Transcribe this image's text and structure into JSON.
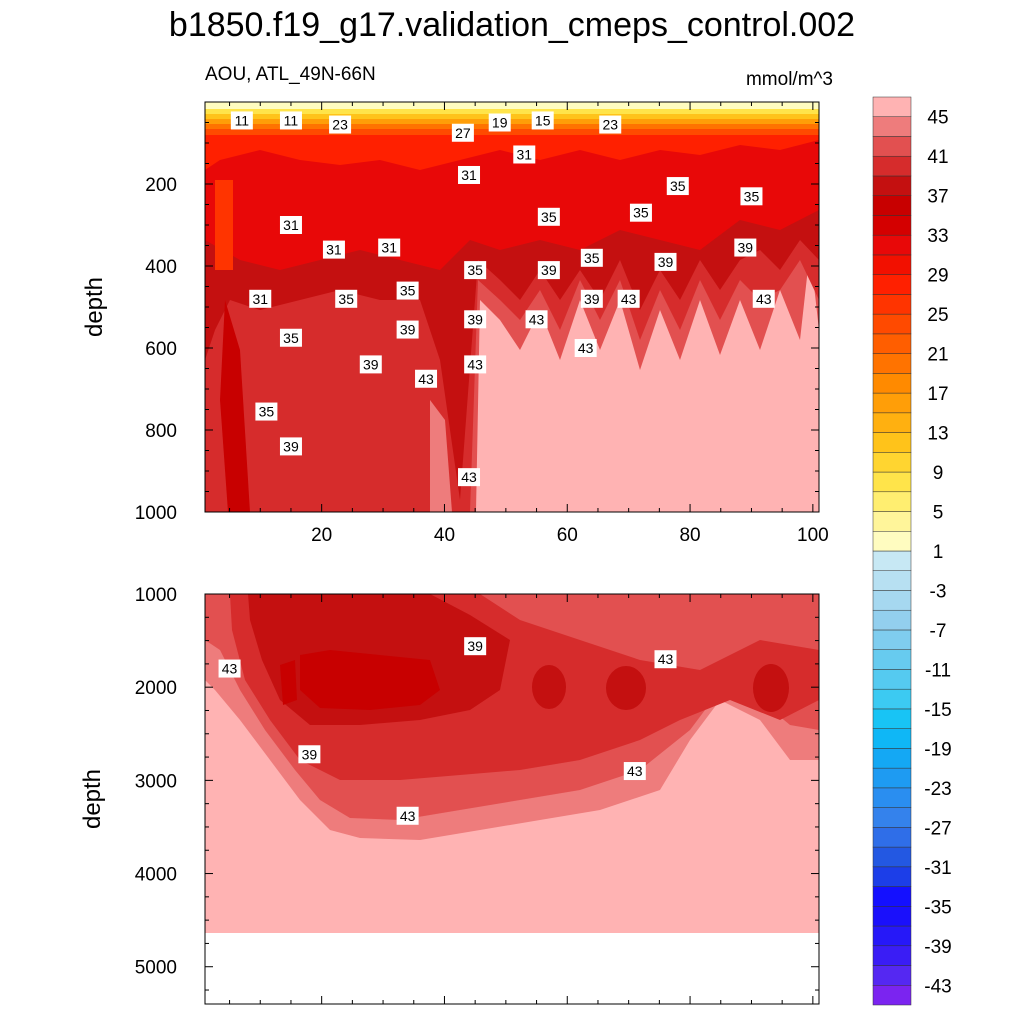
{
  "chart_data": {
    "title": "b1850.f19_g17.validation_cmeps_control.002",
    "subtitle_left": "AOU, ATL_49N-66N",
    "units": "mmol/m^3",
    "type": "contour",
    "colorbar": {
      "levels": [
        -45,
        -43,
        -41,
        -39,
        -37,
        -35,
        -33,
        -31,
        -29,
        -27,
        -25,
        -23,
        -21,
        -19,
        -17,
        -15,
        -13,
        -11,
        -9,
        -7,
        -5,
        -3,
        -1,
        1,
        3,
        5,
        7,
        9,
        11,
        13,
        15,
        17,
        19,
        21,
        23,
        25,
        27,
        29,
        31,
        33,
        35,
        37,
        39,
        41,
        43,
        45
      ],
      "colors": [
        "#7b24f0",
        "#5528f2",
        "#3a1df5",
        "#2618f8",
        "#1a10fb",
        "#1410ff",
        "#1c3ee8",
        "#2358e2",
        "#2f6ee8",
        "#3482ec",
        "#2a8ef0",
        "#1e9bf2",
        "#14a8f4",
        "#0fb7f6",
        "#18c4f5",
        "#3ccaf2",
        "#55caf0",
        "#67cbef",
        "#7fcdef",
        "#93cfee",
        "#a6d8f0",
        "#b7e0f2",
        "#c7e8f4",
        "#fffcc0",
        "#fff59a",
        "#ffee70",
        "#ffe44a",
        "#ffd530",
        "#ffc31a",
        "#ffb010",
        "#ff9e08",
        "#ff8a00",
        "#ff7300",
        "#ff5e00",
        "#ff4a00",
        "#ff3400",
        "#ff2000",
        "#f21000",
        "#e80808",
        "#d40000",
        "#c80000",
        "#c41010",
        "#d62c2c",
        "#e25050",
        "#ee7c7c",
        "#ffb3b3"
      ],
      "tick_labels": [
        "-43",
        "-39",
        "-35",
        "-31",
        "-27",
        "-23",
        "-19",
        "-15",
        "-11",
        "-7",
        "-3",
        "1",
        "5",
        "9",
        "13",
        "17",
        "21",
        "25",
        "29",
        "33",
        "37",
        "41",
        "45"
      ]
    },
    "panels": [
      {
        "name": "upper",
        "ylabel": "depth",
        "x_range": [
          1,
          101
        ],
        "y_range": [
          0,
          1000
        ],
        "y_inverted": true,
        "x_ticks": [
          "20",
          "40",
          "60",
          "80",
          "100"
        ],
        "y_ticks": [
          "200",
          "400",
          "600",
          "800",
          "1000"
        ],
        "contour_labels": [
          {
            "text": "11",
            "x": 7,
            "y": 45
          },
          {
            "text": "11",
            "x": 15,
            "y": 45
          },
          {
            "text": "23",
            "x": 23,
            "y": 55
          },
          {
            "text": "27",
            "x": 43,
            "y": 75
          },
          {
            "text": "19",
            "x": 49,
            "y": 50
          },
          {
            "text": "15",
            "x": 56,
            "y": 45
          },
          {
            "text": "23",
            "x": 67,
            "y": 55
          },
          {
            "text": "31",
            "x": 53,
            "y": 128
          },
          {
            "text": "31",
            "x": 44,
            "y": 178
          },
          {
            "text": "35",
            "x": 78,
            "y": 205
          },
          {
            "text": "35",
            "x": 90,
            "y": 230
          },
          {
            "text": "35",
            "x": 57,
            "y": 280
          },
          {
            "text": "35",
            "x": 72,
            "y": 270
          },
          {
            "text": "31",
            "x": 15,
            "y": 300
          },
          {
            "text": "31",
            "x": 22,
            "y": 360
          },
          {
            "text": "31",
            "x": 31,
            "y": 355
          },
          {
            "text": "39",
            "x": 89,
            "y": 355
          },
          {
            "text": "39",
            "x": 76,
            "y": 390
          },
          {
            "text": "35",
            "x": 64,
            "y": 380
          },
          {
            "text": "35",
            "x": 45,
            "y": 410
          },
          {
            "text": "39",
            "x": 57,
            "y": 410
          },
          {
            "text": "35",
            "x": 34,
            "y": 460
          },
          {
            "text": "31",
            "x": 10,
            "y": 480
          },
          {
            "text": "35",
            "x": 24,
            "y": 480
          },
          {
            "text": "39",
            "x": 64,
            "y": 480
          },
          {
            "text": "43",
            "x": 70,
            "y": 480
          },
          {
            "text": "43",
            "x": 92,
            "y": 480
          },
          {
            "text": "39",
            "x": 45,
            "y": 530
          },
          {
            "text": "43",
            "x": 55,
            "y": 530
          },
          {
            "text": "39",
            "x": 34,
            "y": 555
          },
          {
            "text": "35",
            "x": 15,
            "y": 575
          },
          {
            "text": "43",
            "x": 63,
            "y": 600
          },
          {
            "text": "39",
            "x": 28,
            "y": 640
          },
          {
            "text": "43",
            "x": 45,
            "y": 640
          },
          {
            "text": "43",
            "x": 37,
            "y": 675
          },
          {
            "text": "35",
            "x": 11,
            "y": 755
          },
          {
            "text": "39",
            "x": 15,
            "y": 840
          },
          {
            "text": "43",
            "x": 44,
            "y": 915
          }
        ]
      },
      {
        "name": "lower",
        "ylabel": "depth",
        "x_range": [
          1,
          101
        ],
        "y_range": [
          1000,
          5400
        ],
        "y_inverted": true,
        "y_ticks": [
          "1000",
          "2000",
          "3000",
          "4000",
          "5000"
        ],
        "contour_labels": [
          {
            "text": "43",
            "x": 5,
            "y": 1800
          },
          {
            "text": "39",
            "x": 45,
            "y": 1560
          },
          {
            "text": "43",
            "x": 76,
            "y": 1700
          },
          {
            "text": "39",
            "x": 18,
            "y": 2720
          },
          {
            "text": "43",
            "x": 71,
            "y": 2900
          },
          {
            "text": "43",
            "x": 34,
            "y": 3380
          }
        ]
      }
    ]
  }
}
